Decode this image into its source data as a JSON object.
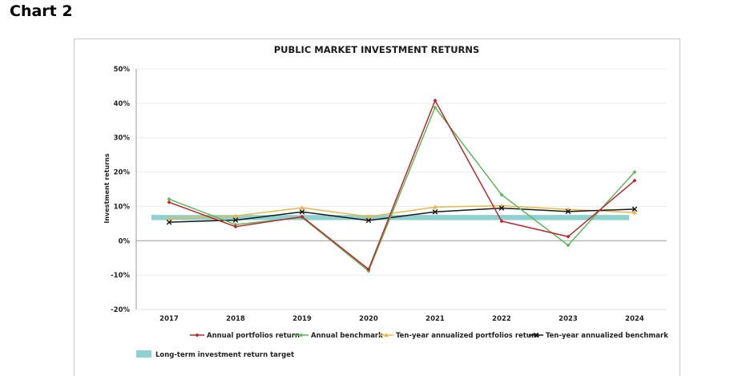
{
  "heading": "Chart 2",
  "chart_data": {
    "type": "line",
    "title": "PUBLIC MARKET INVESTMENT RETURNS",
    "xlabel": "",
    "ylabel": "Investment returns",
    "categories": [
      "2017",
      "2018",
      "2019",
      "2020",
      "2021",
      "2022",
      "2023",
      "2024"
    ],
    "ylim": [
      -20,
      50
    ],
    "yticks": [
      -20,
      -10,
      0,
      10,
      20,
      30,
      40,
      50
    ],
    "ytick_labels": [
      "-20%",
      "-10%",
      "0%",
      "10%",
      "20%",
      "30%",
      "40%",
      "50%"
    ],
    "grid": true,
    "legend_position": "bottom",
    "series": [
      {
        "name": "Annual portfolios return",
        "color": "#c0272d",
        "marker": "diamond",
        "values": [
          11.2,
          4.1,
          7.0,
          -8.3,
          40.8,
          5.7,
          1.2,
          17.5
        ]
      },
      {
        "name": "Annual benchmark",
        "color": "#5cb85c",
        "marker": "diamond",
        "values": [
          12.1,
          4.7,
          6.8,
          -8.8,
          38.8,
          13.4,
          -1.3,
          20.0
        ]
      },
      {
        "name": "Ten-year annualized portfolios return",
        "color": "#e8b84a",
        "marker": "triangle",
        "values": [
          6.5,
          7.2,
          9.6,
          7.0,
          9.8,
          10.2,
          9.1,
          8.2
        ]
      },
      {
        "name": "Ten-year annualized benchmark",
        "color": "#1a1a1a",
        "marker": "x",
        "values": [
          5.4,
          6.0,
          8.4,
          5.9,
          8.4,
          9.5,
          8.5,
          9.2
        ]
      }
    ],
    "target_band": {
      "name": "Long-term investment return target",
      "color": "#8fd0d0",
      "range": [
        6.0,
        7.5
      ]
    }
  }
}
